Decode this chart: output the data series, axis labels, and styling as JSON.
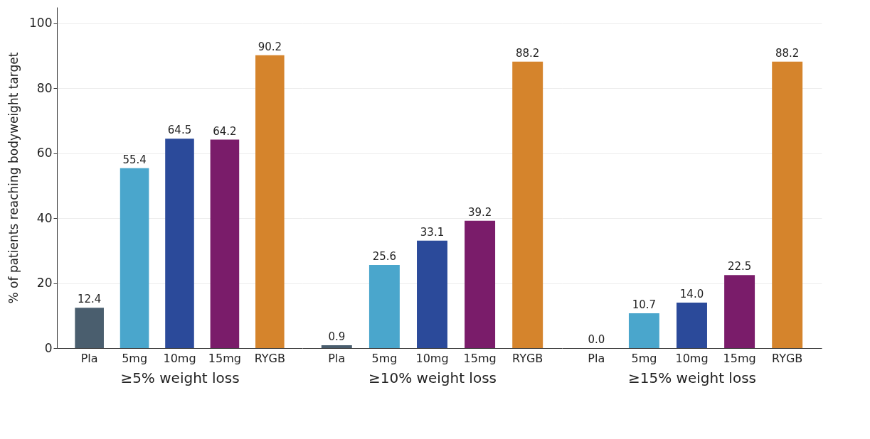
{
  "chart_data": [
    {
      "type": "bar",
      "xlabel": "≥5% weight loss",
      "ylabel": "% of patients reaching bodyweight target",
      "categories": [
        "Pla",
        "5mg",
        "10mg",
        "15mg",
        "RYGB"
      ],
      "values": [
        12.4,
        55.4,
        64.5,
        64.2,
        90.2
      ],
      "value_labels": [
        "12.4",
        "55.4",
        "64.5",
        "64.2",
        "90.2"
      ],
      "colors": [
        "#4a5e6e",
        "#4aa6cc",
        "#2b4a9a",
        "#7a1c6a",
        "#d5842c"
      ],
      "ylim": [
        0,
        105
      ],
      "yticks": [
        0,
        20,
        40,
        60,
        80,
        100
      ],
      "grid": "y"
    },
    {
      "type": "bar",
      "xlabel": "≥10% weight loss",
      "categories": [
        "Pla",
        "5mg",
        "10mg",
        "15mg",
        "RYGB"
      ],
      "values": [
        0.9,
        25.6,
        33.1,
        39.2,
        88.2
      ],
      "value_labels": [
        "0.9",
        "25.6",
        "33.1",
        "39.2",
        "88.2"
      ],
      "colors": [
        "#4a5e6e",
        "#4aa6cc",
        "#2b4a9a",
        "#7a1c6a",
        "#d5842c"
      ],
      "grid": "y",
      "tick_labels": "x"
    },
    {
      "type": "bar",
      "xlabel": "≥15% weight loss",
      "categories": [
        "Pla",
        "5mg",
        "10mg",
        "15mg",
        "RYGB"
      ],
      "values": [
        0.0,
        10.7,
        14.0,
        22.5,
        88.2
      ],
      "value_labels": [
        "0.0",
        "10.7",
        "14.0",
        "22.5",
        "88.2"
      ],
      "colors": [
        "#4a5e6e",
        "#4aa6cc",
        "#2b4a9a",
        "#7a1c6a",
        "#d5842c"
      ],
      "grid": "y",
      "tick_labels": "x"
    }
  ]
}
